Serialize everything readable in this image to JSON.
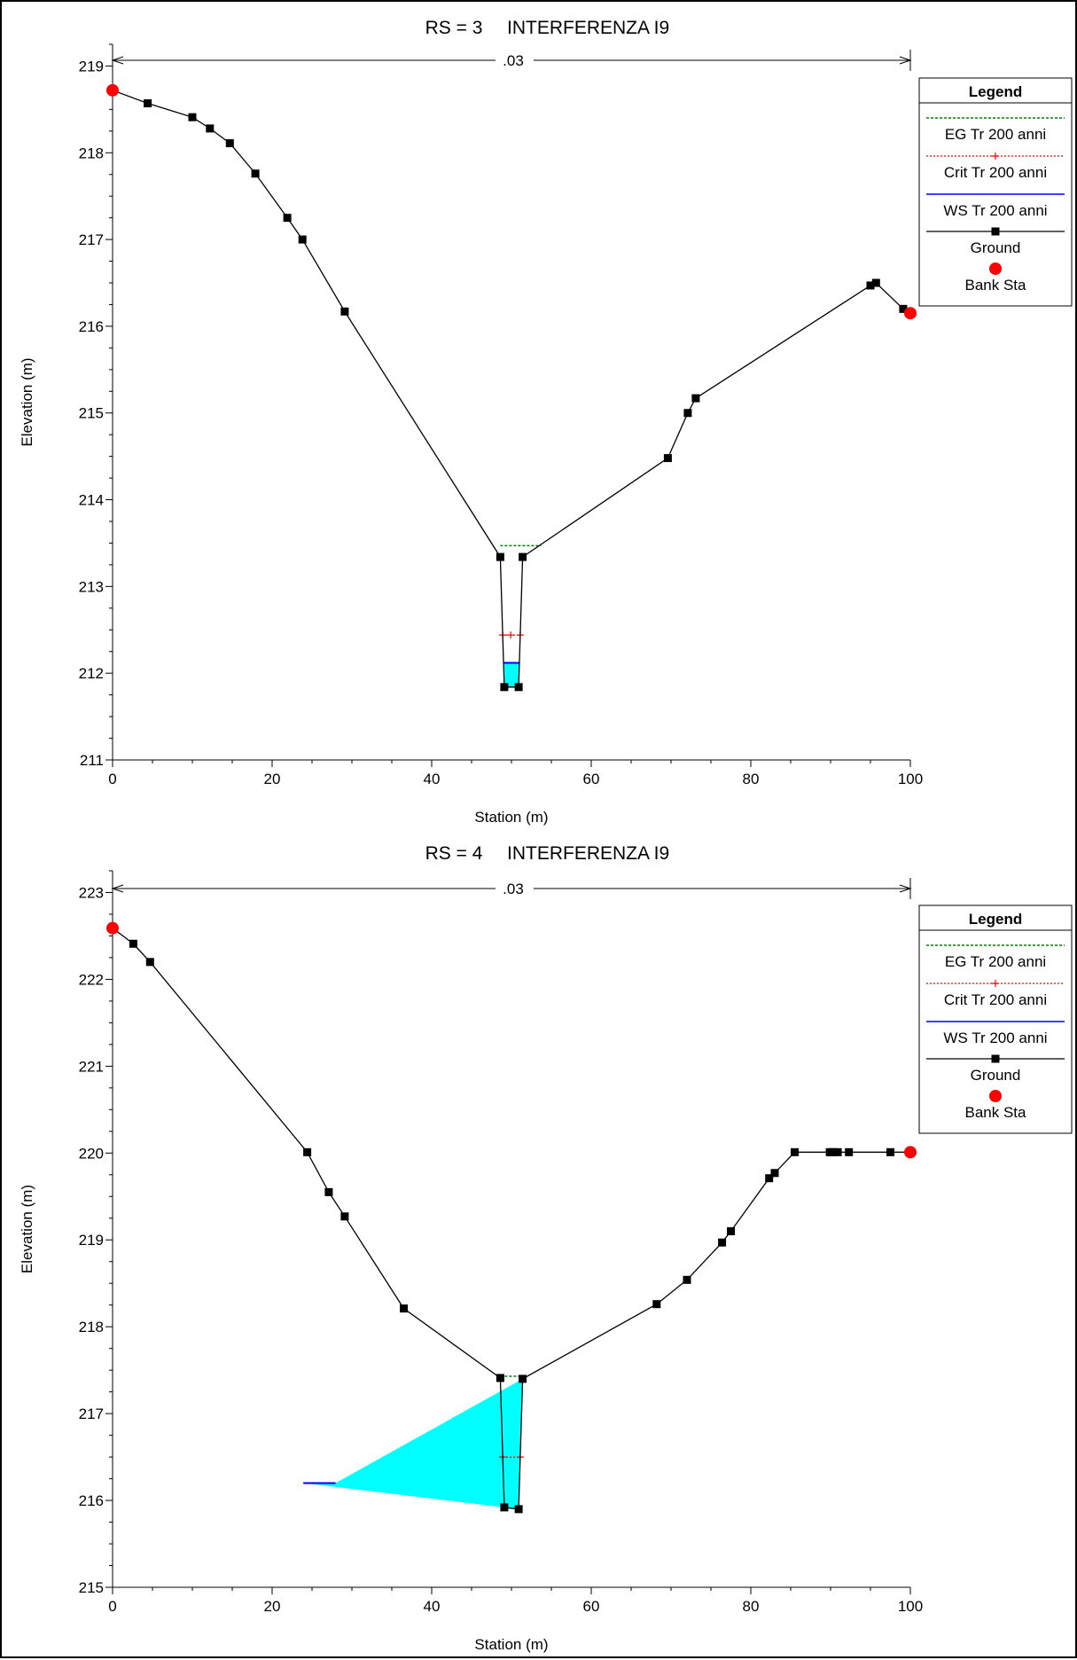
{
  "chart_data": [
    {
      "type": "line",
      "title_left": "RS = 3",
      "title_right": "INTERFERENZA I9",
      "xlabel": "Station (m)",
      "ylabel": "Elevation (m)",
      "xlim": [
        0,
        100
      ],
      "ylim": [
        211,
        219.25
      ],
      "xticks": [
        0,
        20,
        40,
        60,
        80,
        100
      ],
      "yticks": [
        211,
        212,
        213,
        214,
        215,
        216,
        217,
        218,
        219
      ],
      "manning_label": ".03",
      "legend": {
        "title": "Legend",
        "entries": [
          "EG Tr 200 anni",
          "Crit Tr 200 anni",
          "WS Tr 200 anni",
          "Ground",
          "Bank Sta"
        ],
        "placement": "top-right"
      },
      "ground": {
        "x": [
          0,
          4.4,
          10,
          12.2,
          14.7,
          17.9,
          21.9,
          23.8,
          29.1,
          48.6,
          49.1,
          50.9,
          51.4,
          69.6,
          72.1,
          73.1,
          95.0,
          95.7,
          99.1,
          100
        ],
        "y": [
          218.72,
          218.57,
          218.41,
          218.28,
          218.11,
          217.76,
          217.25,
          217.0,
          216.17,
          213.34,
          211.84,
          211.84,
          213.34,
          214.48,
          215.0,
          215.17,
          216.47,
          216.5,
          216.2,
          216.15
        ]
      },
      "bank_sta": {
        "x": [
          0,
          100
        ],
        "y": [
          218.72,
          216.15
        ]
      },
      "ws_elevation": 212.12,
      "crit_elevation": 212.44,
      "crit_x": [
        48.9,
        49.9,
        51.1
      ],
      "eg_elevation": 213.47,
      "eg_x_range": [
        48.6,
        53.7
      ],
      "colors": {
        "ground": "#000000",
        "bank": "#ff0000",
        "ws": "#0000ff",
        "crit": "#ff0000",
        "eg": "#008000",
        "water_fill": "#00ffff"
      }
    },
    {
      "type": "line",
      "title_left": "RS = 4",
      "title_right": "INTERFERENZA I9",
      "xlabel": "Station (m)",
      "ylabel": "Elevation (m)",
      "xlim": [
        0,
        100
      ],
      "ylim": [
        215,
        223.25
      ],
      "xticks": [
        0,
        20,
        40,
        60,
        80,
        100
      ],
      "yticks": [
        215,
        216,
        217,
        218,
        219,
        220,
        221,
        222,
        223
      ],
      "manning_label": ".03",
      "legend": {
        "title": "Legend",
        "entries": [
          "EG Tr 200 anni",
          "Crit Tr 200 anni",
          "WS Tr 200 anni",
          "Ground",
          "Bank Sta"
        ],
        "placement": "top-right"
      },
      "ground": {
        "x": [
          0,
          2.6,
          4.7,
          24.4,
          27.1,
          29.1,
          36.5,
          48.6,
          49.1,
          50.9,
          51.4,
          68.2,
          72.0,
          76.4,
          77.5,
          82.3,
          83.0,
          85.5,
          89.9,
          90.3,
          90.9,
          92.3,
          97.5,
          100
        ],
        "y": [
          222.59,
          222.41,
          222.2,
          220.01,
          219.55,
          219.27,
          218.21,
          217.41,
          215.92,
          215.9,
          217.4,
          218.26,
          218.54,
          218.97,
          219.1,
          219.71,
          219.77,
          220.01,
          220.01,
          220.01,
          220.01,
          220.01,
          220.01,
          220.01
        ]
      },
      "bank_sta": {
        "x": [
          0,
          100
        ],
        "y": [
          222.59,
          220.01
        ]
      },
      "ws_elevation": 216.2,
      "crit_elevation": 216.5,
      "crit_x": [
        48.9,
        51.1
      ],
      "eg_elevation": 217.43,
      "eg_x_range": [
        48.6,
        51.4
      ],
      "colors": {
        "ground": "#000000",
        "bank": "#ff0000",
        "ws": "#0000ff",
        "crit": "#ff0000",
        "eg": "#008000",
        "water_fill": "#00ffff"
      }
    }
  ]
}
